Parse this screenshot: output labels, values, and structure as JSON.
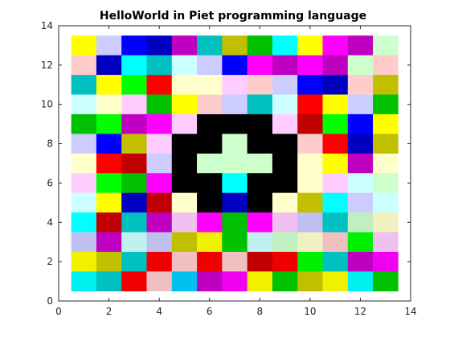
{
  "chart_data": {
    "type": "heatmap",
    "title": "HelloWorld in Piet programming language",
    "xlabel": "",
    "ylabel": "",
    "xlim": [
      0,
      14
    ],
    "ylim": [
      0,
      14
    ],
    "xticks": [
      0,
      2,
      4,
      6,
      8,
      10,
      12,
      14
    ],
    "yticks": [
      0,
      2,
      4,
      6,
      8,
      10,
      12,
      14
    ],
    "grid": false,
    "cell_x_range": [
      0.5,
      13.5
    ],
    "cell_y_range": [
      0.5,
      13.5
    ],
    "columns": 13,
    "rows": 13,
    "row_order": "top-to-bottom",
    "cells": [
      [
        "#FFFF00",
        "#CCCCFF",
        "#0000FF",
        "#0000C0",
        "#C000C0",
        "#00C0C0",
        "#C0C000",
        "#00C000",
        "#00FFFF",
        "#FFFF00",
        "#FF00FF",
        "#C000C0",
        "#CCFFCC"
      ],
      [
        "#FFCCCC",
        "#0000C0",
        "#00FFFF",
        "#00C0C0",
        "#CCFFFF",
        "#CCCCFF",
        "#0000FF",
        "#FF00FF",
        "#C000C0",
        "#FF00FF",
        "#C000C0",
        "#CCFFCC",
        "#FFCCCC"
      ],
      [
        "#00C0C0",
        "#FFFF00",
        "#00FF00",
        "#FF0000",
        "#FFFFCC",
        "#FFFFCC",
        "#FFCCFF",
        "#FFCCCC",
        "#CCCCFF",
        "#0000FF",
        "#0000C0",
        "#FFCCCC",
        "#C0C000"
      ],
      [
        "#CCFFFF",
        "#FFFFCC",
        "#FFCCFF",
        "#00C000",
        "#FFFF00",
        "#FFCCCC",
        "#CCCCFF",
        "#00C0C0",
        "#CCFFFF",
        "#FF0000",
        "#FFFF00",
        "#CCCCFF",
        "#00C000"
      ],
      [
        "#00C000",
        "#00FF00",
        "#C000C0",
        "#FF00FF",
        "#FFCCFF",
        "#000000",
        "#000000",
        "#000000",
        "#FFCCFF",
        "#C00000",
        "#00FF00",
        "#0000FF",
        "#FFFF00"
      ],
      [
        "#CCCCFF",
        "#0000FF",
        "#C0C000",
        "#FFCCFF",
        "#000000",
        "#000000",
        "#CCFFCC",
        "#000000",
        "#000000",
        "#FFCCCC",
        "#FF0000",
        "#0000C0",
        "#C0C000"
      ],
      [
        "#FFFFCC",
        "#FF0000",
        "#C00000",
        "#CCCCFF",
        "#000000",
        "#CCFFCC",
        "#CCFFCC",
        "#CCFFCC",
        "#000000",
        "#FFFFCC",
        "#FFFF00",
        "#C000C0",
        "#FFFFCC"
      ],
      [
        "#FFCCFF",
        "#00FF00",
        "#00C000",
        "#FF00FF",
        "#000000",
        "#000000",
        "#00FFFF",
        "#000000",
        "#000000",
        "#FFFFCC",
        "#FFCCFF",
        "#CCFFFF",
        "#CCFFCC"
      ],
      [
        "#CCFFFF",
        "#FFFF00",
        "#0000C0",
        "#C00000",
        "#FFFFCC",
        "#000000",
        "#0000C0",
        "#000000",
        "#FFFFCC",
        "#C0C000",
        "#00FFFF",
        "#CCCCFF",
        "#CCFFFF"
      ],
      [
        "#00FFFF",
        "#C00000",
        "#00C0C0",
        "#C000C0",
        "#F0C0F0",
        "#FF00FF",
        "#00C000",
        "#FF00FF",
        "#F0C0F0",
        "#C0C0F0",
        "#00C0C0",
        "#C0F0C0",
        "#F0F0C0"
      ],
      [
        "#C0C0F0",
        "#C000C0",
        "#C0F0F0",
        "#C0C0F0",
        "#C0C000",
        "#F0F000",
        "#00C000",
        "#C0F0F0",
        "#C0F0C0",
        "#F0F0C0",
        "#F0C0C0",
        "#00F000",
        "#F0C0F0"
      ],
      [
        "#F0F000",
        "#C0C000",
        "#00C0C0",
        "#F00000",
        "#F0C0C0",
        "#F00000",
        "#F0C0C0",
        "#C00000",
        "#F00000",
        "#00F000",
        "#00C0C0",
        "#C000C0",
        "#F000F0"
      ],
      [
        "#00F0F0",
        "#00C0C0",
        "#F00000",
        "#F0C0C0",
        "#00C0F0",
        "#C000C0",
        "#F000F0",
        "#F0F000",
        "#00C000",
        "#C0C000",
        "#F0F000",
        "#00F0F0",
        "#00C000"
      ]
    ]
  }
}
